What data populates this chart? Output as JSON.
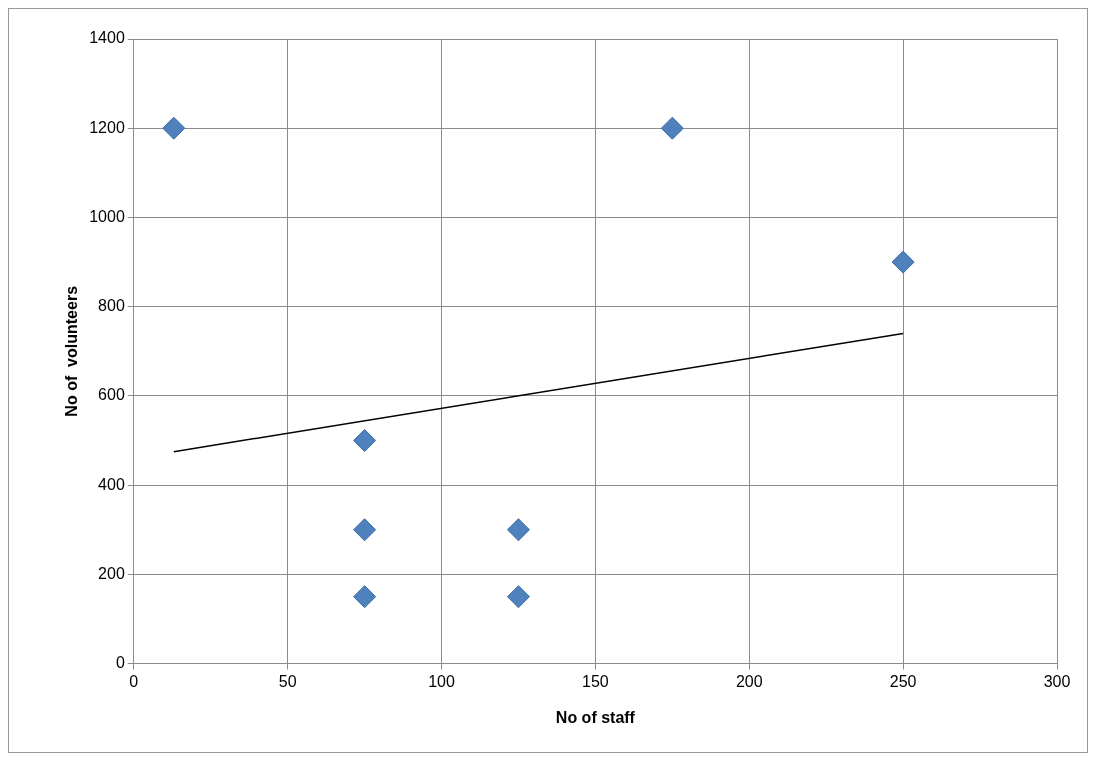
{
  "chart_data": {
    "type": "scatter",
    "xlabel": "No of staff",
    "ylabel": "No of  volunteers",
    "xlim": [
      0,
      300
    ],
    "xticks": [
      0,
      50,
      100,
      150,
      200,
      250,
      300
    ],
    "ylim": [
      0,
      1400
    ],
    "yticks": [
      0,
      200,
      400,
      600,
      800,
      1000,
      1200,
      1400
    ],
    "grid": true,
    "legend": false,
    "marker": "diamond",
    "series": [
      {
        "type": "scatter",
        "color": "#4f81bd",
        "x": [
          13,
          175,
          250,
          75,
          75,
          75,
          125,
          125
        ],
        "values": [
          1200,
          1200,
          900,
          500,
          300,
          150,
          300,
          150
        ]
      },
      {
        "type": "line",
        "color": "#000000",
        "x": [
          13,
          250
        ],
        "values": [
          475,
          740
        ],
        "marker": "none",
        "line_style": "solid"
      }
    ]
  }
}
